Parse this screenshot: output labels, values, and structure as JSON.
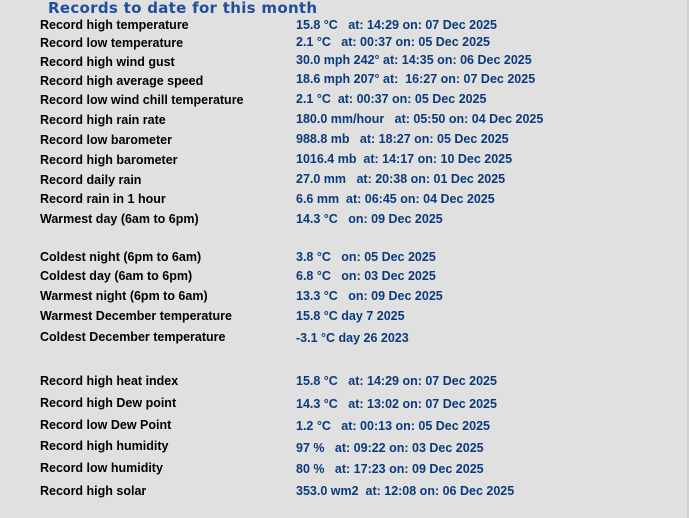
{
  "title": "Records to date for this month",
  "records": [
    {
      "label": "Record high temperature",
      "value": "15.8 °C   at: 14:29 on: 07 Dec 2025"
    },
    {
      "label": "Record low temperature",
      "value": "2.1 °C   at: 00:37 on: 05 Dec 2025"
    },
    {
      "label": "Record high wind gust",
      "value": "30.0 mph 242° at: 14:35 on: 06 Dec 2025"
    },
    {
      "label": "Record high average speed",
      "value": "18.6 mph 207° at:  16:27 on: 07 Dec 2025"
    },
    {
      "label": "Record low wind chill temperature",
      "value": "2.1 °C  at: 00:37 on: 05 Dec 2025"
    },
    {
      "label": "Record high rain rate",
      "value": "180.0 mm/hour   at: 05:50 on: 04 Dec 2025"
    },
    {
      "label": "Record low barometer",
      "value": "988.8 mb   at: 18:27 on: 05 Dec 2025"
    },
    {
      "label": "Record high barometer",
      "value": "1016.4 mb  at: 14:17 on: 10 Dec 2025"
    },
    {
      "label": "Record daily rain",
      "value": "27.0 mm   at: 20:38 on: 01 Dec 2025"
    },
    {
      "label": "Record rain in 1 hour",
      "value": "6.6 mm  at: 06:45 on: 04 Dec 2025"
    },
    {
      "label": "Warmest day (6am to 6pm)",
      "value": "14.3 °C   on: 09 Dec 2025"
    },
    {
      "label": "Coldest night (6pm to 6am)",
      "value": "3.8 °C   on: 05 Dec 2025"
    },
    {
      "label": "Coldest day (6am to 6pm)",
      "value": "6.8 °C   on: 03 Dec 2025"
    },
    {
      "label": "Warmest night (6pm to 6am)",
      "value": "13.3 °C   on: 09 Dec 2025"
    },
    {
      "label": "Warmest December temperature",
      "value": "15.8 °C day 7 2025"
    },
    {
      "label": "Coldest December temperature",
      "value": "-3.1 °C day 26 2023"
    },
    {
      "label": "Record high heat index",
      "value": "15.8 °C   at: 14:29 on: 07 Dec 2025"
    },
    {
      "label": "Record high Dew point",
      "value": "14.3 °C   at: 13:02 on: 07 Dec 2025"
    },
    {
      "label": "Record low Dew Point",
      "value": "1.2 °C   at: 00:13 on: 05 Dec 2025"
    },
    {
      "label": "Record high humidity",
      "value": "97 %   at: 09:22 on: 03 Dec 2025"
    },
    {
      "label": "Record low humidity",
      "value": "80 %   at: 17:23 on: 09 Dec 2025"
    },
    {
      "label": "Record high solar",
      "value": "353.0 wm2  at: 12:08 on: 06 Dec 2025"
    }
  ]
}
